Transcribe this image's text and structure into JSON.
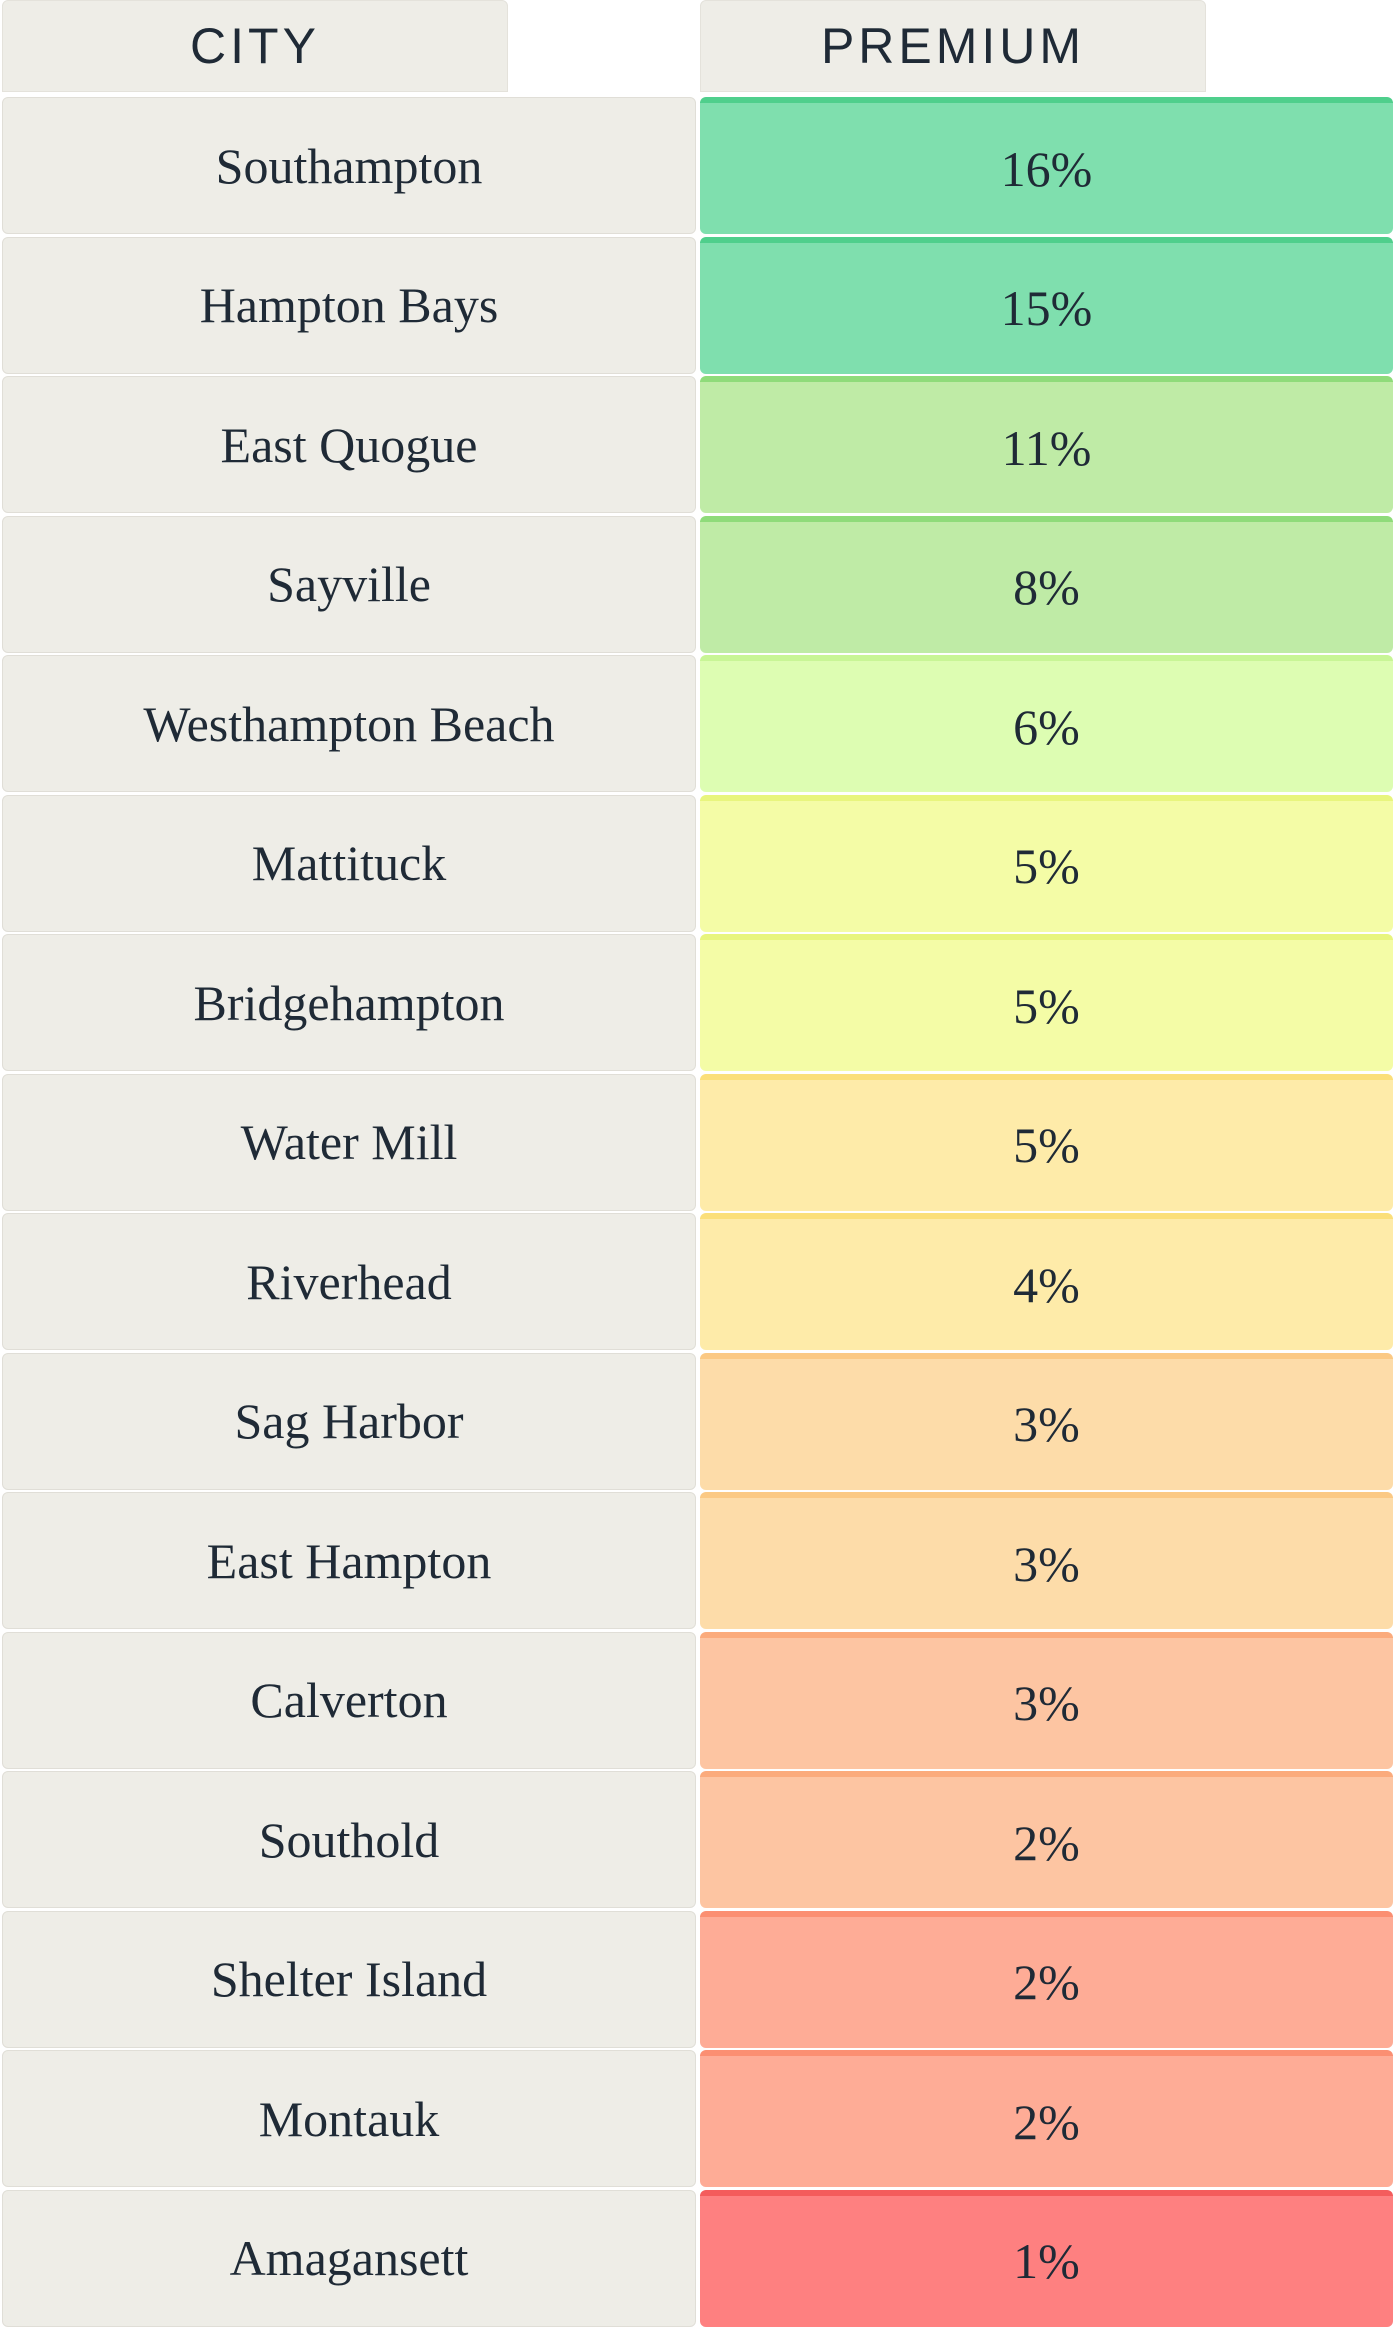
{
  "headers": {
    "city": "CITY",
    "premium": "PREMIUM"
  },
  "chart_data": {
    "type": "table",
    "columns": [
      "CITY",
      "PREMIUM"
    ],
    "rows": [
      {
        "city": "Southampton",
        "premium": "16%",
        "value": 16,
        "fill": "#7fdfae",
        "edge": "#4fcf8c"
      },
      {
        "city": "Hampton Bays",
        "premium": "15%",
        "value": 15,
        "fill": "#7fdfae",
        "edge": "#4fcf8c"
      },
      {
        "city": "East Quogue",
        "premium": "11%",
        "value": 11,
        "fill": "#bfeba6",
        "edge": "#8fdb7a"
      },
      {
        "city": "Sayville",
        "premium": "8%",
        "value": 8,
        "fill": "#bfeba6",
        "edge": "#8fdb7a"
      },
      {
        "city": "Westhampton Beach",
        "premium": "6%",
        "value": 6,
        "fill": "#ddfdb2",
        "edge": "#c8f596"
      },
      {
        "city": "Mattituck",
        "premium": "5%",
        "value": 5,
        "fill": "#f4fca6",
        "edge": "#e8f57e"
      },
      {
        "city": "Bridgehampton",
        "premium": "5%",
        "value": 5,
        "fill": "#f4fca6",
        "edge": "#e8f57e"
      },
      {
        "city": "Water Mill",
        "premium": "5%",
        "value": 5,
        "fill": "#feeba9",
        "edge": "#fbdf7a"
      },
      {
        "city": "Riverhead",
        "premium": "4%",
        "value": 4,
        "fill": "#feeba9",
        "edge": "#fbdf7a"
      },
      {
        "city": "Sag Harbor",
        "premium": "3%",
        "value": 3,
        "fill": "#fddca9",
        "edge": "#fbc984"
      },
      {
        "city": "East Hampton",
        "premium": "3%",
        "value": 3,
        "fill": "#fddca9",
        "edge": "#fbc984"
      },
      {
        "city": "Calverton",
        "premium": "3%",
        "value": 3,
        "fill": "#fdc5a2",
        "edge": "#fbab7c"
      },
      {
        "city": "Southold",
        "premium": "2%",
        "value": 2,
        "fill": "#fdc5a2",
        "edge": "#fbab7c"
      },
      {
        "city": "Shelter Island",
        "premium": "2%",
        "value": 2,
        "fill": "#feac96",
        "edge": "#fb8f72"
      },
      {
        "city": "Montauk",
        "premium": "2%",
        "value": 2,
        "fill": "#feac96",
        "edge": "#fb8f72"
      },
      {
        "city": "Amagansett",
        "premium": "1%",
        "value": 1,
        "fill": "#fe8080",
        "edge": "#f45c5c"
      }
    ]
  }
}
